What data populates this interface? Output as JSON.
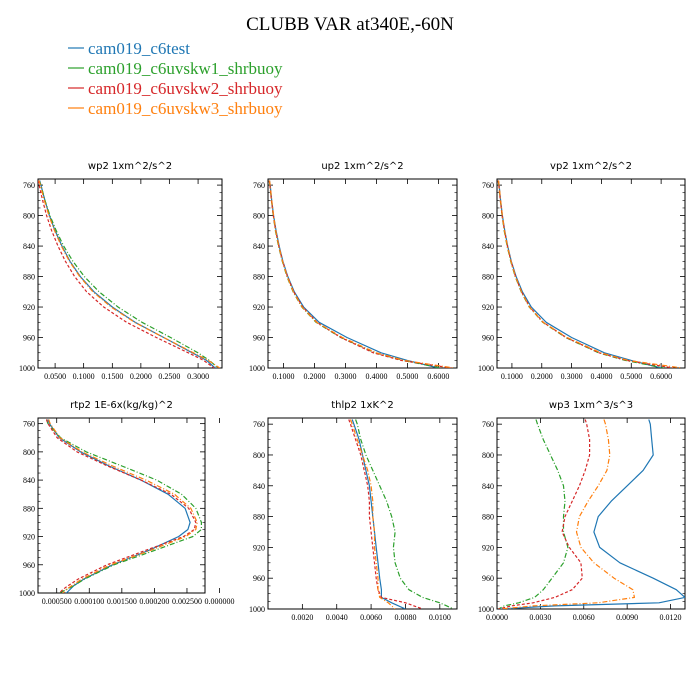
{
  "title": "CLUBB VAR at340E,-60N",
  "legend": [
    {
      "label": "cam019_c6test",
      "color": "#1f77b4"
    },
    {
      "label": "cam019_c6uvskw1_shrbuoy",
      "color": "#2ca02c"
    },
    {
      "label": "cam019_c6uvskw2_shrbuoy",
      "color": "#d62728"
    },
    {
      "label": "cam019_c6uvskw3_shrbuoy",
      "color": "#ff7f0e"
    }
  ],
  "chart_data": [
    {
      "type": "line",
      "title": "wp2   1xm^2/s^2",
      "ylim": [
        1000,
        752
      ],
      "xlim": [
        0.02,
        0.342
      ],
      "yticks": [
        "760",
        "800",
        "840",
        "880",
        "920",
        "960",
        "1000"
      ],
      "xticks": [
        "0.0500",
        "0.1000",
        "0.1500",
        "0.2000",
        "0.2500",
        "0.3000"
      ],
      "y": [
        754,
        760,
        780,
        800,
        820,
        840,
        860,
        880,
        900,
        920,
        940,
        960,
        980,
        990,
        1000
      ],
      "series": [
        {
          "name": "cam019_c6test",
          "style": "solid",
          "values": [
            0.023,
            0.025,
            0.032,
            0.04,
            0.05,
            0.062,
            0.076,
            0.094,
            0.118,
            0.15,
            0.19,
            0.24,
            0.29,
            0.315,
            0.33
          ]
        },
        {
          "name": "cam019_c6uvskw1_shrbuoy",
          "style": "dashdot",
          "values": [
            0.022,
            0.025,
            0.032,
            0.041,
            0.052,
            0.065,
            0.081,
            0.101,
            0.127,
            0.16,
            0.202,
            0.252,
            0.3,
            0.32,
            0.335
          ]
        },
        {
          "name": "cam019_c6uvskw2_shrbuoy",
          "style": "dash",
          "values": [
            0.02,
            0.022,
            0.028,
            0.035,
            0.044,
            0.055,
            0.068,
            0.084,
            0.105,
            0.135,
            0.175,
            0.227,
            0.283,
            0.31,
            0.328
          ]
        },
        {
          "name": "cam019_c6uvskw3_shrbuoy",
          "style": "dashdot",
          "values": [
            0.022,
            0.024,
            0.031,
            0.039,
            0.049,
            0.061,
            0.075,
            0.093,
            0.116,
            0.148,
            0.189,
            0.24,
            0.292,
            0.318,
            0.338
          ]
        }
      ]
    },
    {
      "type": "line",
      "title": "up2   1xm^2/s^2",
      "ylim": [
        1000,
        752
      ],
      "xlim": [
        0.05,
        0.66
      ],
      "yticks": [
        "760",
        "800",
        "840",
        "880",
        "920",
        "960",
        "1000"
      ],
      "xticks": [
        "0.1000",
        "0.2000",
        "0.3000",
        "0.4000",
        "0.5000",
        "0.6000"
      ],
      "y": [
        754,
        760,
        780,
        800,
        820,
        840,
        860,
        880,
        900,
        920,
        940,
        960,
        980,
        990,
        1000
      ],
      "series": [
        {
          "name": "cam019_c6test",
          "style": "solid",
          "values": [
            0.055,
            0.057,
            0.062,
            0.068,
            0.076,
            0.086,
            0.098,
            0.114,
            0.135,
            0.165,
            0.215,
            0.305,
            0.415,
            0.5,
            0.6
          ]
        },
        {
          "name": "cam019_c6uvskw1_shrbuoy",
          "style": "dashdot",
          "values": [
            0.054,
            0.056,
            0.061,
            0.067,
            0.074,
            0.084,
            0.096,
            0.111,
            0.131,
            0.159,
            0.205,
            0.285,
            0.395,
            0.485,
            0.61
          ]
        },
        {
          "name": "cam019_c6uvskw2_shrbuoy",
          "style": "dash",
          "values": [
            0.054,
            0.056,
            0.061,
            0.067,
            0.075,
            0.085,
            0.097,
            0.113,
            0.133,
            0.162,
            0.208,
            0.285,
            0.39,
            0.48,
            0.64
          ]
        },
        {
          "name": "cam019_c6uvskw3_shrbuoy",
          "style": "dashdot",
          "values": [
            0.055,
            0.057,
            0.062,
            0.068,
            0.075,
            0.085,
            0.097,
            0.112,
            0.132,
            0.16,
            0.207,
            0.29,
            0.4,
            0.49,
            0.65
          ]
        }
      ]
    },
    {
      "type": "line",
      "title": "vp2   1xm^2/s^2",
      "ylim": [
        1000,
        752
      ],
      "xlim": [
        0.05,
        0.68
      ],
      "yticks": [
        "760",
        "800",
        "840",
        "880",
        "920",
        "960",
        "1000"
      ],
      "xticks": [
        "0.1000",
        "0.2000",
        "0.3000",
        "0.4000",
        "0.5000",
        "0.6000"
      ],
      "y": [
        754,
        760,
        780,
        800,
        820,
        840,
        860,
        880,
        900,
        920,
        940,
        960,
        980,
        990,
        1000
      ],
      "series": [
        {
          "name": "cam019_c6test",
          "style": "solid",
          "values": [
            0.055,
            0.057,
            0.062,
            0.068,
            0.076,
            0.086,
            0.098,
            0.114,
            0.135,
            0.165,
            0.215,
            0.3,
            0.41,
            0.5,
            0.6
          ]
        },
        {
          "name": "cam019_c6uvskw1_shrbuoy",
          "style": "dashdot",
          "values": [
            0.054,
            0.056,
            0.061,
            0.067,
            0.074,
            0.084,
            0.096,
            0.111,
            0.131,
            0.158,
            0.203,
            0.28,
            0.39,
            0.48,
            0.61
          ]
        },
        {
          "name": "cam019_c6uvskw2_shrbuoy",
          "style": "dash",
          "values": [
            0.054,
            0.056,
            0.061,
            0.067,
            0.075,
            0.085,
            0.097,
            0.112,
            0.132,
            0.16,
            0.205,
            0.282,
            0.392,
            0.485,
            0.64
          ]
        },
        {
          "name": "cam019_c6uvskw3_shrbuoy",
          "style": "dashdot",
          "values": [
            0.055,
            0.057,
            0.062,
            0.068,
            0.075,
            0.085,
            0.097,
            0.112,
            0.132,
            0.159,
            0.204,
            0.285,
            0.398,
            0.49,
            0.67
          ]
        }
      ]
    },
    {
      "type": "line",
      "title": "rtp2   1E-6x(kg/kg)^2",
      "ylim": [
        1000,
        752
      ],
      "xlim": [
        0.0,
        0.00235
      ],
      "yticks": [
        "760",
        "800",
        "840",
        "880",
        "920",
        "960",
        "1000"
      ],
      "xticks": [
        "0.000500",
        "0.000100",
        "0.001500",
        "0.000200",
        "0.002500",
        "0.000000"
      ],
      "y": [
        754,
        760,
        780,
        800,
        820,
        840,
        860,
        880,
        900,
        910,
        920,
        940,
        960,
        980,
        990,
        995,
        1000
      ],
      "series": [
        {
          "name": "cam019_c6test",
          "style": "solid",
          "values": [
            0.00014,
            0.00016,
            0.0003,
            0.0006,
            0.001,
            0.00145,
            0.00183,
            0.00207,
            0.00214,
            0.00211,
            0.00198,
            0.00155,
            0.00105,
            0.00065,
            0.0005,
            0.00045,
            0.0004
          ]
        },
        {
          "name": "cam019_c6uvskw1_shrbuoy",
          "style": "dashdot",
          "values": [
            0.00012,
            0.00014,
            0.00032,
            0.00068,
            0.00118,
            0.00167,
            0.00202,
            0.00222,
            0.0023,
            0.0023,
            0.00218,
            0.00163,
            0.00107,
            0.00066,
            0.0005,
            0.0004,
            0.0003
          ]
        },
        {
          "name": "cam019_c6uvskw2_shrbuoy",
          "style": "dash",
          "values": [
            0.00012,
            0.00014,
            0.00027,
            0.00055,
            0.00098,
            0.00145,
            0.00187,
            0.00212,
            0.00222,
            0.0022,
            0.00205,
            0.0015,
            0.00097,
            0.00057,
            0.00042,
            0.00035,
            0.0003
          ]
        },
        {
          "name": "cam019_c6uvskw3_shrbuoy",
          "style": "dashdot",
          "values": [
            0.00015,
            0.00017,
            0.00031,
            0.00062,
            0.00105,
            0.00152,
            0.00192,
            0.00215,
            0.00224,
            0.00222,
            0.00208,
            0.00157,
            0.00102,
            0.00062,
            0.00047,
            0.0004,
            0.00035
          ]
        }
      ]
    },
    {
      "type": "line",
      "title": "thlp2   1xK^2",
      "ylim": [
        1000,
        752
      ],
      "xlim": [
        0.0,
        0.011
      ],
      "yticks": [
        "760",
        "800",
        "840",
        "880",
        "920",
        "960",
        "1000"
      ],
      "xticks": [
        "0.0020",
        "0.0040",
        "0.0060",
        "0.0080",
        "0.0100"
      ],
      "y": [
        754,
        760,
        780,
        800,
        820,
        840,
        860,
        880,
        900,
        920,
        940,
        960,
        975,
        985,
        992,
        1000
      ],
      "series": [
        {
          "name": "cam019_c6test",
          "style": "solid",
          "values": [
            0.0049,
            0.005,
            0.0053,
            0.0055,
            0.0057,
            0.0059,
            0.006,
            0.0061,
            0.0062,
            0.0063,
            0.0064,
            0.0065,
            0.0066,
            0.0066,
            0.0072,
            0.008
          ]
        },
        {
          "name": "cam019_c6uvskw1_shrbuoy",
          "style": "dashdot",
          "values": [
            0.0051,
            0.0052,
            0.0054,
            0.0057,
            0.0061,
            0.0065,
            0.0069,
            0.0072,
            0.0074,
            0.0073,
            0.0074,
            0.0077,
            0.0082,
            0.009,
            0.01,
            0.0108
          ]
        },
        {
          "name": "cam019_c6uvskw2_shrbuoy",
          "style": "dash",
          "values": [
            0.0047,
            0.0048,
            0.0051,
            0.0054,
            0.0056,
            0.0058,
            0.0059,
            0.0059,
            0.006,
            0.0061,
            0.0062,
            0.0063,
            0.0064,
            0.0066,
            0.008,
            0.009
          ]
        },
        {
          "name": "cam019_c6uvskw3_shrbuoy",
          "style": "dashdot",
          "values": [
            0.0048,
            0.0049,
            0.0052,
            0.0055,
            0.0058,
            0.006,
            0.0061,
            0.0061,
            0.0062,
            0.0062,
            0.0063,
            0.0064,
            0.0064,
            0.0065,
            0.007,
            0.0074
          ]
        }
      ]
    },
    {
      "type": "line",
      "title": "wp3   1xm^3/s^3",
      "ylim": [
        1000,
        752
      ],
      "xlim": [
        0.0,
        0.013
      ],
      "yticks": [
        "760",
        "800",
        "840",
        "880",
        "920",
        "960",
        "1000"
      ],
      "xticks": [
        "0.0000",
        "0.0030",
        "0.0060",
        "0.0090",
        "0.0120"
      ],
      "y": [
        754,
        760,
        780,
        800,
        820,
        840,
        860,
        880,
        900,
        920,
        940,
        960,
        975,
        985,
        992,
        996,
        1000
      ],
      "series": [
        {
          "name": "cam019_c6test",
          "style": "solid",
          "values": [
            0.0105,
            0.0106,
            0.0107,
            0.0108,
            0.0101,
            0.009,
            0.0079,
            0.007,
            0.0067,
            0.0071,
            0.0085,
            0.0108,
            0.0124,
            0.013,
            0.0112,
            0.004,
            0.0002
          ]
        },
        {
          "name": "cam019_c6uvskw1_shrbuoy",
          "style": "dashdot",
          "values": [
            0.0027,
            0.0028,
            0.0032,
            0.0037,
            0.0042,
            0.0046,
            0.0047,
            0.0046,
            0.0046,
            0.0049,
            0.0046,
            0.0038,
            0.0032,
            0.0026,
            0.0015,
            0.0005,
            0.0001
          ]
        },
        {
          "name": "cam019_c6uvskw2_shrbuoy",
          "style": "dash",
          "values": [
            0.0061,
            0.0062,
            0.0064,
            0.0064,
            0.0061,
            0.0057,
            0.0052,
            0.0047,
            0.0045,
            0.005,
            0.0058,
            0.0059,
            0.0052,
            0.004,
            0.0025,
            0.001,
            0.0001
          ]
        },
        {
          "name": "cam019_c6uvskw3_shrbuoy",
          "style": "dashdot",
          "values": [
            0.0074,
            0.0075,
            0.0077,
            0.0078,
            0.0076,
            0.007,
            0.0063,
            0.0057,
            0.0055,
            0.0058,
            0.0067,
            0.0081,
            0.0094,
            0.0095,
            0.007,
            0.0025,
            0.0003
          ]
        }
      ]
    }
  ]
}
